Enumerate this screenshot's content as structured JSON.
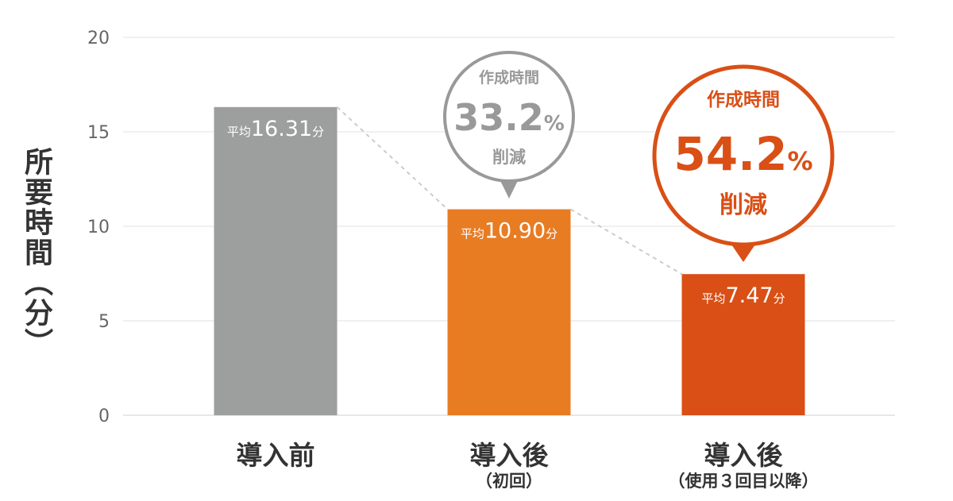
{
  "chart_data": {
    "type": "bar",
    "ylabel": "所要時間（分）",
    "ylim": [
      0,
      20
    ],
    "yticks": [
      0,
      5,
      10,
      15,
      20
    ],
    "grid": true,
    "categories": [
      {
        "main": "導入前",
        "sub": ""
      },
      {
        "main": "導入後",
        "sub": "（初回）"
      },
      {
        "main": "導入後",
        "sub": "（使用３回目以降）"
      }
    ],
    "values": [
      16.31,
      10.9,
      7.47
    ],
    "data_labels": [
      {
        "prefix": "平均",
        "value": "16.31",
        "unit": "分"
      },
      {
        "prefix": "平均",
        "value": "10.90",
        "unit": "分"
      },
      {
        "prefix": "平均",
        "value": "7.47",
        "unit": "分"
      }
    ],
    "colors": [
      "#9d9e9e",
      "#e87c23",
      "#d94f15"
    ],
    "trend_line": {
      "style": "dashed",
      "color": "#cccccc"
    },
    "callouts": [
      {
        "bar_index": 1,
        "line1": "作成時間",
        "value": "33.2",
        "unit": "%",
        "line3": "削減",
        "color": "#999999"
      },
      {
        "bar_index": 2,
        "line1": "作成時間",
        "value": "54.2",
        "unit": "%",
        "line3": "削減",
        "color": "#d94f15"
      }
    ]
  }
}
